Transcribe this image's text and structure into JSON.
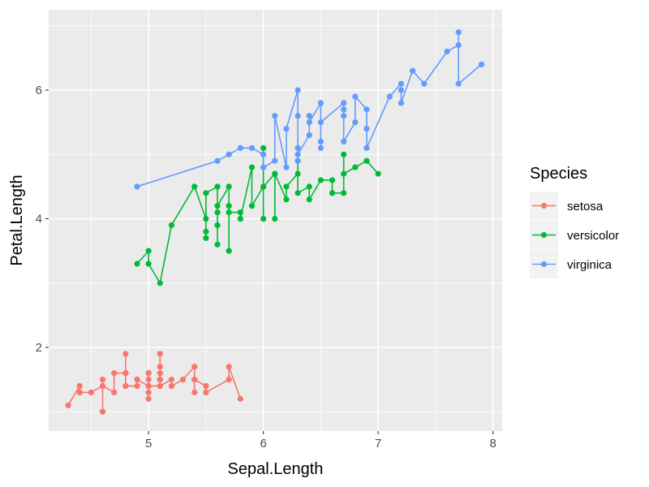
{
  "chart_data": {
    "type": "line",
    "xlabel": "Sepal.Length",
    "ylabel": "Petal.Length",
    "xlim": [
      4.13,
      8.08
    ],
    "ylim": [
      0.7,
      7.25
    ],
    "x_ticks": [
      5,
      6,
      7,
      8
    ],
    "y_ticks": [
      2,
      4,
      6
    ],
    "x_minor": [
      4.5,
      5.5,
      6.5,
      7.5
    ],
    "y_minor": [
      1,
      3,
      5,
      7
    ],
    "grid": true,
    "panel_background": "#EBEBEB",
    "legend": {
      "title": "Species",
      "position": "right"
    },
    "series": [
      {
        "name": "setosa",
        "color": "#F8766D",
        "points": [
          [
            4.3,
            1.1
          ],
          [
            4.4,
            1.4
          ],
          [
            4.4,
            1.3
          ],
          [
            4.4,
            1.3
          ],
          [
            4.5,
            1.3
          ],
          [
            4.6,
            1.4
          ],
          [
            4.6,
            1.0
          ],
          [
            4.6,
            1.5
          ],
          [
            4.6,
            1.4
          ],
          [
            4.7,
            1.3
          ],
          [
            4.7,
            1.6
          ],
          [
            4.8,
            1.6
          ],
          [
            4.8,
            1.4
          ],
          [
            4.8,
            1.9
          ],
          [
            4.8,
            1.6
          ],
          [
            4.8,
            1.4
          ],
          [
            4.9,
            1.4
          ],
          [
            4.9,
            1.5
          ],
          [
            4.9,
            1.4
          ],
          [
            4.9,
            1.5
          ],
          [
            5.0,
            1.4
          ],
          [
            5.0,
            1.5
          ],
          [
            5.0,
            1.6
          ],
          [
            5.0,
            1.4
          ],
          [
            5.0,
            1.2
          ],
          [
            5.0,
            1.3
          ],
          [
            5.0,
            1.6
          ],
          [
            5.0,
            1.4
          ],
          [
            5.1,
            1.4
          ],
          [
            5.1,
            1.5
          ],
          [
            5.1,
            1.5
          ],
          [
            5.1,
            1.7
          ],
          [
            5.1,
            1.5
          ],
          [
            5.1,
            1.9
          ],
          [
            5.1,
            1.6
          ],
          [
            5.1,
            1.4
          ],
          [
            5.2,
            1.5
          ],
          [
            5.2,
            1.4
          ],
          [
            5.3,
            1.5
          ],
          [
            5.4,
            1.7
          ],
          [
            5.4,
            1.5
          ],
          [
            5.4,
            1.3
          ],
          [
            5.4,
            1.5
          ],
          [
            5.5,
            1.4
          ],
          [
            5.5,
            1.3
          ],
          [
            5.7,
            1.5
          ],
          [
            5.7,
            1.7
          ],
          [
            5.8,
            1.2
          ]
        ]
      },
      {
        "name": "versicolor",
        "color": "#00BA38",
        "points": [
          [
            4.9,
            3.3
          ],
          [
            5.0,
            3.5
          ],
          [
            5.0,
            3.3
          ],
          [
            5.1,
            3.0
          ],
          [
            5.2,
            3.9
          ],
          [
            5.4,
            4.5
          ],
          [
            5.5,
            4.0
          ],
          [
            5.5,
            3.8
          ],
          [
            5.5,
            3.7
          ],
          [
            5.5,
            4.4
          ],
          [
            5.6,
            4.5
          ],
          [
            5.6,
            3.6
          ],
          [
            5.6,
            3.9
          ],
          [
            5.6,
            4.1
          ],
          [
            5.6,
            4.2
          ],
          [
            5.7,
            4.5
          ],
          [
            5.7,
            3.5
          ],
          [
            5.7,
            4.2
          ],
          [
            5.7,
            4.1
          ],
          [
            5.8,
            4.1
          ],
          [
            5.8,
            4.0
          ],
          [
            5.9,
            4.8
          ],
          [
            5.9,
            4.2
          ],
          [
            6.0,
            4.5
          ],
          [
            6.0,
            4.0
          ],
          [
            6.0,
            5.1
          ],
          [
            6.0,
            4.5
          ],
          [
            6.1,
            4.7
          ],
          [
            6.1,
            4.0
          ],
          [
            6.1,
            4.7
          ],
          [
            6.2,
            4.3
          ],
          [
            6.2,
            4.5
          ],
          [
            6.3,
            4.7
          ],
          [
            6.3,
            4.9
          ],
          [
            6.3,
            4.4
          ],
          [
            6.4,
            4.5
          ],
          [
            6.4,
            4.3
          ],
          [
            6.5,
            4.6
          ],
          [
            6.6,
            4.6
          ],
          [
            6.6,
            4.4
          ],
          [
            6.7,
            4.4
          ],
          [
            6.7,
            5.0
          ],
          [
            6.7,
            4.7
          ],
          [
            6.8,
            4.8
          ],
          [
            6.9,
            4.9
          ],
          [
            7.0,
            4.7
          ]
        ]
      },
      {
        "name": "virginica",
        "color": "#619CFF",
        "points": [
          [
            4.9,
            4.5
          ],
          [
            5.6,
            4.9
          ],
          [
            5.7,
            5.0
          ],
          [
            5.8,
            5.1
          ],
          [
            5.9,
            5.1
          ],
          [
            6.0,
            5.0
          ],
          [
            6.0,
            4.8
          ],
          [
            6.1,
            4.9
          ],
          [
            6.1,
            5.6
          ],
          [
            6.2,
            4.8
          ],
          [
            6.2,
            5.4
          ],
          [
            6.3,
            6.0
          ],
          [
            6.3,
            5.1
          ],
          [
            6.3,
            5.6
          ],
          [
            6.3,
            4.9
          ],
          [
            6.3,
            5.0
          ],
          [
            6.4,
            5.3
          ],
          [
            6.4,
            5.6
          ],
          [
            6.4,
            5.5
          ],
          [
            6.5,
            5.8
          ],
          [
            6.5,
            5.1
          ],
          [
            6.5,
            5.2
          ],
          [
            6.5,
            5.5
          ],
          [
            6.7,
            5.8
          ],
          [
            6.7,
            5.7
          ],
          [
            6.7,
            5.6
          ],
          [
            6.7,
            5.2
          ],
          [
            6.8,
            5.5
          ],
          [
            6.8,
            5.9
          ],
          [
            6.9,
            5.7
          ],
          [
            6.9,
            5.4
          ],
          [
            6.9,
            5.1
          ],
          [
            7.1,
            5.9
          ],
          [
            7.2,
            6.1
          ],
          [
            7.2,
            6.0
          ],
          [
            7.2,
            5.8
          ],
          [
            7.3,
            6.3
          ],
          [
            7.4,
            6.1
          ],
          [
            7.6,
            6.6
          ],
          [
            7.7,
            6.7
          ],
          [
            7.7,
            6.9
          ],
          [
            7.7,
            6.1
          ],
          [
            7.9,
            6.4
          ]
        ]
      }
    ]
  }
}
